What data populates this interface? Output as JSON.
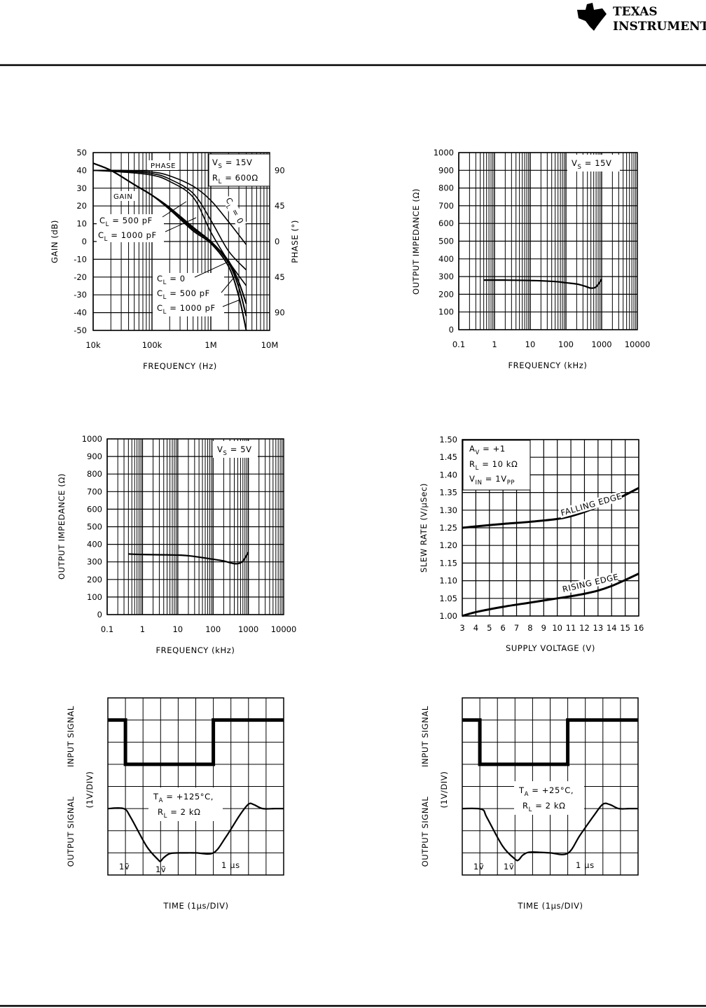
{
  "header": {
    "brand_line1": "TEXAS",
    "brand_line2": "INSTRUMENTS",
    "logo_icon": "ti-logo-icon"
  },
  "chart_data": [
    {
      "type": "line",
      "xlabel": "FREQUENCY (Hz)",
      "ylabel": "GAIN (dB)",
      "y2label": "PHASE (°)",
      "xscale": "log",
      "xlim": [
        10000,
        10000000
      ],
      "ylim": [
        -50,
        50
      ],
      "y2lim": [
        -112.5,
        112.5
      ],
      "x_ticks": [
        10000,
        100000,
        1000000,
        10000000
      ],
      "x_tick_labels": [
        "10k",
        "100k",
        "1M",
        "10M"
      ],
      "y_ticks": [
        50,
        40,
        30,
        20,
        10,
        0,
        -10,
        -20,
        -30,
        -40,
        -50
      ],
      "y_tick_labels": [
        "50",
        "40",
        "30",
        "20",
        "10",
        "0",
        "-10",
        "-20",
        "-30",
        "-40",
        "-50"
      ],
      "y2_ticks": [
        90,
        45,
        0,
        -45,
        -90
      ],
      "y2_tick_labels": [
        "90",
        "45",
        "0",
        "45",
        "90"
      ],
      "grid": true,
      "annotations": {
        "phase": "PHASE",
        "gain": "GAIN",
        "vs": "V",
        "vs_sub": "S",
        "vs_val": " = 15V",
        "rl": "R",
        "rl_sub": "L",
        "rl_val": " = 600Ω",
        "cl": "C",
        "cl_sub": "L",
        "cl0_rot": " = 0",
        "cl500": " = 500 pF",
        "cl1000": " = 1000 pF",
        "cl0": " = 0"
      },
      "series": [
        {
          "name": "GAIN C_L = 0",
          "axis": "left",
          "x": [
            10000,
            20000,
            50000,
            100000,
            200000,
            500000,
            1000000,
            2000000,
            3000000,
            4000000
          ],
          "y": [
            44,
            40,
            32,
            26,
            19,
            8,
            0,
            -11,
            -23,
            -35
          ]
        },
        {
          "name": "GAIN C_L = 500 pF",
          "axis": "left",
          "x": [
            10000,
            20000,
            50000,
            100000,
            200000,
            500000,
            1000000,
            2000000,
            3000000,
            4000000
          ],
          "y": [
            44,
            40,
            32,
            26,
            19,
            7,
            0,
            -12,
            -26,
            -42
          ]
        },
        {
          "name": "GAIN C_L = 1000 pF",
          "axis": "left",
          "x": [
            10000,
            20000,
            50000,
            100000,
            200000,
            500000,
            1000000,
            2000000,
            3000000,
            4000000
          ],
          "y": [
            44,
            40,
            32,
            26,
            18,
            6,
            -1,
            -14,
            -31,
            -50
          ]
        },
        {
          "name": "PHASE C_L = 0",
          "axis": "right",
          "x": [
            10000,
            30000,
            100000,
            200000,
            500000,
            1000000,
            2000000,
            4000000
          ],
          "y": [
            90,
            90,
            88,
            83,
            70,
            52,
            25,
            -4
          ]
        },
        {
          "name": "PHASE C_L = 500 pF",
          "axis": "right",
          "x": [
            10000,
            30000,
            100000,
            200000,
            500000,
            1000000,
            2000000,
            4000000
          ],
          "y": [
            90,
            89,
            86,
            79,
            61,
            27,
            -12,
            -36
          ]
        },
        {
          "name": "PHASE C_L = 1000 pF",
          "axis": "right",
          "x": [
            10000,
            30000,
            100000,
            200000,
            500000,
            1000000,
            2000000,
            4000000
          ],
          "y": [
            90,
            88,
            84,
            76,
            56,
            12,
            -25,
            -56
          ]
        }
      ]
    },
    {
      "type": "line",
      "xlabel": "FREQUENCY (kHz)",
      "ylabel": "OUTPUT IMPEDANCE (Ω)",
      "xscale": "log",
      "xlim": [
        0.1,
        10000
      ],
      "ylim": [
        0,
        1000
      ],
      "x_ticks": [
        0.1,
        1,
        10,
        100,
        1000,
        10000
      ],
      "x_tick_labels": [
        "0.1",
        "1",
        "10",
        "100",
        "1000",
        "10000"
      ],
      "y_ticks": [
        1000,
        900,
        800,
        700,
        600,
        500,
        400,
        300,
        200,
        100,
        0
      ],
      "y_tick_labels": [
        "1000",
        "900",
        "800",
        "700",
        "600",
        "500",
        "400",
        "300",
        "200",
        "100",
        "0"
      ],
      "grid": true,
      "annotations": {
        "vs": "V",
        "vs_sub": "S",
        "vs_val": " = 15V"
      },
      "series": [
        {
          "x": [
            0.5,
            2,
            10,
            50,
            100,
            200,
            350,
            500,
            700,
            1000
          ],
          "y": [
            280,
            280,
            278,
            272,
            265,
            258,
            245,
            235,
            242,
            285
          ]
        }
      ]
    },
    {
      "type": "line",
      "xlabel": "FREQUENCY (kHz)",
      "ylabel": "OUTPUT IMPEDANCE (Ω)",
      "xscale": "log",
      "xlim": [
        0.1,
        10000
      ],
      "ylim": [
        0,
        1000
      ],
      "x_ticks": [
        0.1,
        1,
        10,
        100,
        1000,
        10000
      ],
      "x_tick_labels": [
        "0.1",
        "1",
        "10",
        "100",
        "1000",
        "10000"
      ],
      "y_ticks": [
        1000,
        900,
        800,
        700,
        600,
        500,
        400,
        300,
        200,
        100,
        0
      ],
      "y_tick_labels": [
        "1000",
        "900",
        "800",
        "700",
        "600",
        "500",
        "400",
        "300",
        "200",
        "100",
        "0"
      ],
      "grid": true,
      "annotations": {
        "vs": "V",
        "vs_sub": "S",
        "vs_val": " = 5V"
      },
      "series": [
        {
          "x": [
            0.4,
            1,
            5,
            20,
            100,
            200,
            350,
            500,
            700,
            1000
          ],
          "y": [
            345,
            342,
            340,
            335,
            315,
            305,
            292,
            290,
            305,
            355
          ]
        }
      ]
    },
    {
      "type": "line",
      "xlabel": "SUPPLY VOLTAGE (V)",
      "ylabel": "SLEW RATE (V/µSec)",
      "xscale": "linear",
      "xlim": [
        3,
        16
      ],
      "ylim": [
        1.0,
        1.5
      ],
      "x_ticks": [
        3,
        4,
        5,
        6,
        7,
        8,
        9,
        10,
        11,
        12,
        13,
        14,
        15,
        16
      ],
      "x_tick_labels": [
        "3",
        "4",
        "5",
        "6",
        "7",
        "8",
        "9",
        "10",
        "11",
        "12",
        "13",
        "14",
        "15",
        "16"
      ],
      "y_ticks": [
        1.5,
        1.45,
        1.4,
        1.35,
        1.3,
        1.25,
        1.2,
        1.15,
        1.1,
        1.05,
        1.0
      ],
      "y_tick_labels": [
        "1.50",
        "1.45",
        "1.40",
        "1.35",
        "1.30",
        "1.25",
        "1.20",
        "1.15",
        "1.10",
        "1.05",
        "1.00"
      ],
      "grid": true,
      "annotations": {
        "av": "A",
        "av_sub": "V",
        "av_val": " = +1",
        "rl": "R",
        "rl_sub": "L",
        "rl_val": " = 10 kΩ",
        "vin": "V",
        "vin_sub": "IN",
        "vin_val": " = 1V",
        "vin_unit_sub": "PP"
      },
      "series": [
        {
          "name": "FALLING EDGE",
          "x": [
            3,
            4,
            6,
            8,
            10,
            11,
            12,
            13,
            14,
            15,
            16
          ],
          "y": [
            1.25,
            1.254,
            1.261,
            1.267,
            1.275,
            1.283,
            1.295,
            1.31,
            1.325,
            1.343,
            1.363
          ]
        },
        {
          "name": "RISING EDGE",
          "x": [
            3,
            4,
            6,
            8,
            10,
            11,
            12,
            13,
            14,
            15,
            16
          ],
          "y": [
            1.0,
            1.011,
            1.026,
            1.038,
            1.05,
            1.056,
            1.063,
            1.072,
            1.085,
            1.102,
            1.12
          ]
        }
      ]
    },
    {
      "type": "line",
      "xlabel": "TIME (1µs/DIV)",
      "ylabel_top": "INPUT SIGNAL",
      "ylabel_mid": "(1V/DIV)",
      "ylabel_bottom": "OUTPUT SIGNAL",
      "xscale": "linear",
      "xlim": [
        0,
        10
      ],
      "ylim": [
        0,
        8
      ],
      "grid": true,
      "annotations": {
        "ta": "T",
        "ta_sub": "A",
        "ta_val": " = +125°C,",
        "rl": "R",
        "rl_sub": "L",
        "rl_val": " = 2 kΩ",
        "mark1": "1ṽ",
        "mark2": "1ṽ",
        "mark3": "1 µs"
      },
      "series": [
        {
          "name": "INPUT SIGNAL",
          "x": [
            0,
            1,
            1,
            6,
            6,
            10
          ],
          "y": [
            7,
            7,
            5,
            5,
            7,
            7
          ],
          "step": true
        },
        {
          "name": "OUTPUT SIGNAL",
          "x": [
            0,
            0.9,
            1.3,
            2.2,
            2.85,
            3.0,
            3.2,
            3.6,
            4.5,
            5.0,
            6.0,
            6.7,
            7.5,
            8.0,
            8.3,
            8.8,
            9.5,
            10
          ],
          "y": [
            3,
            3,
            2.6,
            1.3,
            0.7,
            0.63,
            0.8,
            0.98,
            1.0,
            1.0,
            1.0,
            1.7,
            2.7,
            3.2,
            3.18,
            3.0,
            3.0,
            3.0
          ]
        }
      ]
    },
    {
      "type": "line",
      "xlabel": "TIME (1µs/DIV)",
      "ylabel_top": "INPUT SIGNAL",
      "ylabel_mid": "(1V/DIV)",
      "ylabel_bottom": "OUTPUT SIGNAL",
      "xscale": "linear",
      "xlim": [
        0,
        10
      ],
      "ylim": [
        0,
        8
      ],
      "grid": true,
      "annotations": {
        "ta": "T",
        "ta_sub": "A",
        "ta_val": " = +25°C,",
        "rl": "R",
        "rl_sub": "L",
        "rl_val": " = 2 kΩ",
        "mark1": "1ṽ",
        "mark2": "1ṽ",
        "mark3": "1 µs"
      },
      "series": [
        {
          "name": "INPUT SIGNAL",
          "x": [
            0,
            1,
            1,
            6,
            6,
            10
          ],
          "y": [
            7,
            7,
            5,
            5,
            7,
            7
          ],
          "step": true
        },
        {
          "name": "OUTPUT SIGNAL",
          "x": [
            0,
            1.1,
            1.4,
            2.3,
            3.0,
            3.2,
            3.45,
            3.8,
            4.5,
            5.0,
            6.0,
            6.7,
            7.5,
            8.0,
            8.4,
            8.9,
            9.5,
            10
          ],
          "y": [
            3,
            2.97,
            2.6,
            1.3,
            0.72,
            0.68,
            0.9,
            1.03,
            1.02,
            1.0,
            0.98,
            1.8,
            2.7,
            3.2,
            3.18,
            3.0,
            3.0,
            3.0
          ]
        }
      ]
    }
  ]
}
